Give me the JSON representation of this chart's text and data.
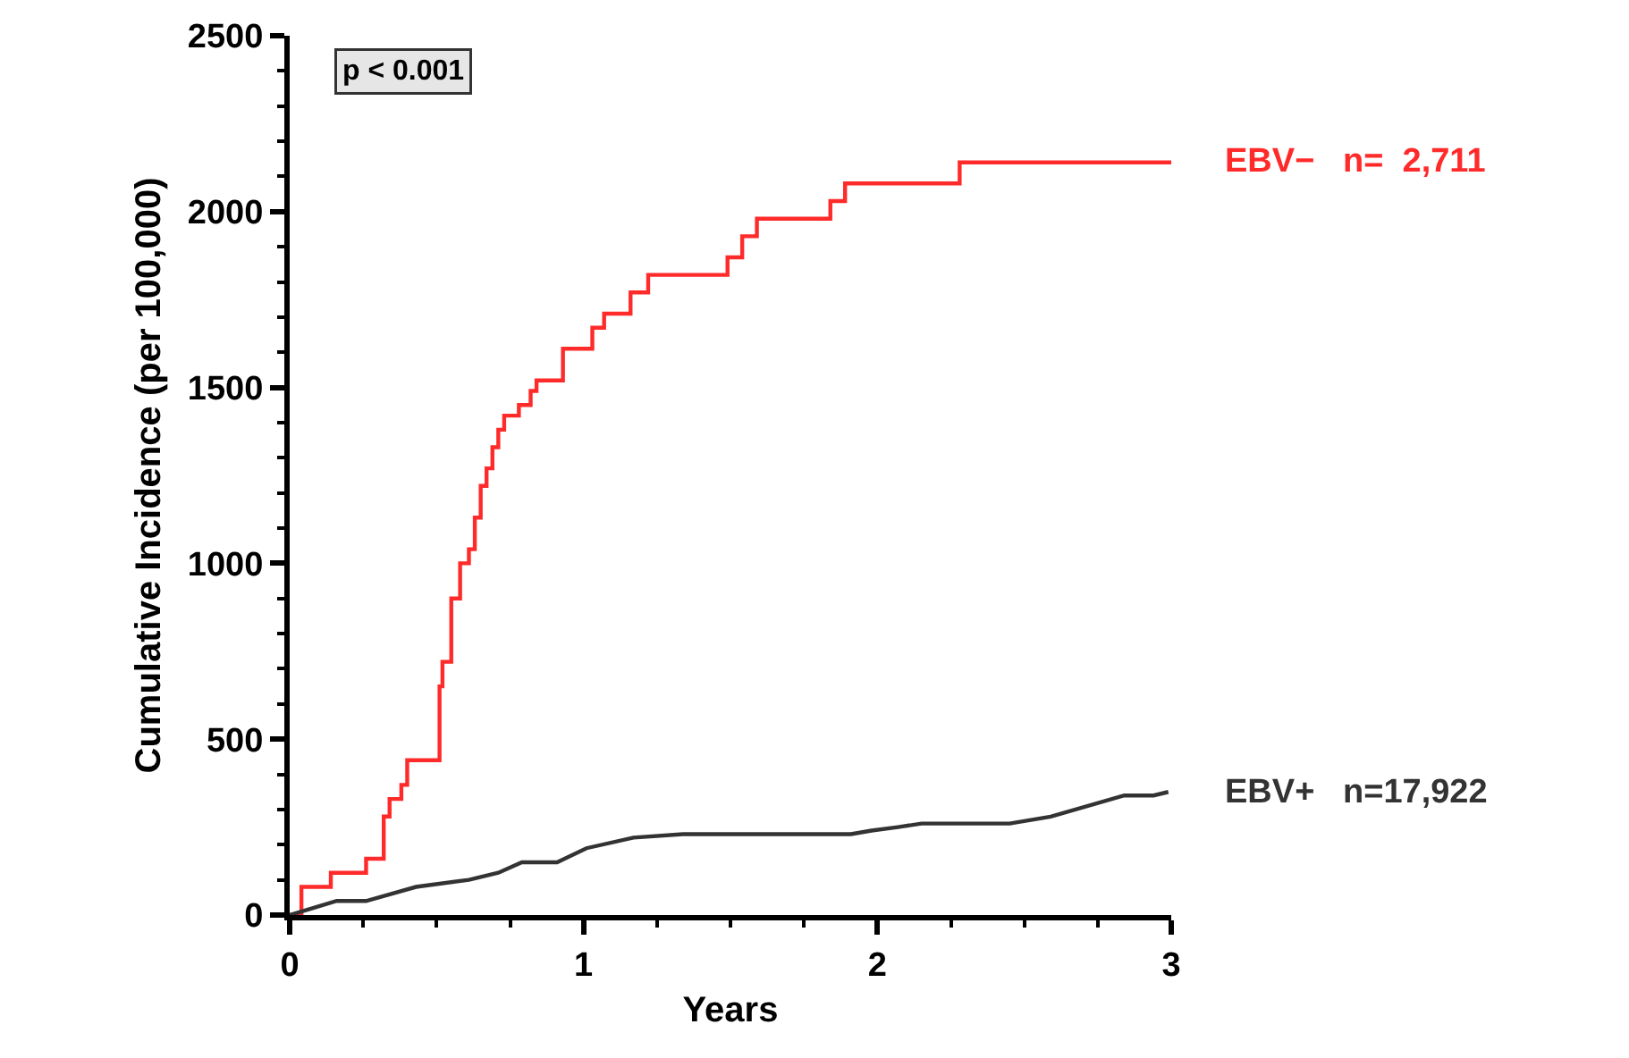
{
  "chart_data": {
    "type": "step",
    "xlabel": "Years",
    "ylabel": "Cumulative Incidence (per 100,000)",
    "xlim": [
      0,
      3
    ],
    "xticks": [
      0,
      1,
      2,
      3
    ],
    "ylim": [
      0,
      2500
    ],
    "yticks": [
      0,
      500,
      1000,
      1500,
      2000,
      2500
    ],
    "legend": false,
    "marker": "none",
    "line_style": "solid",
    "annotations": [
      "p < 0.001"
    ],
    "series": [
      {
        "name": "EBV−   n=  2,711",
        "color": "#ff2a2a",
        "x": [
          0,
          0.04,
          0.14,
          0.26,
          0.32,
          0.34,
          0.38,
          0.4,
          0.51,
          0.52,
          0.55,
          0.58,
          0.61,
          0.63,
          0.65,
          0.67,
          0.69,
          0.71,
          0.73,
          0.78,
          0.82,
          0.84,
          0.93,
          1.03,
          1.07,
          1.16,
          1.22,
          1.49,
          1.54,
          1.59,
          1.84,
          1.89,
          2.28,
          3.0
        ],
        "values": [
          0,
          80,
          120,
          160,
          280,
          330,
          370,
          440,
          650,
          720,
          900,
          1000,
          1040,
          1130,
          1220,
          1270,
          1330,
          1380,
          1420,
          1450,
          1490,
          1520,
          1610,
          1670,
          1710,
          1770,
          1820,
          1870,
          1930,
          1980,
          2030,
          2080,
          2140,
          2140
        ]
      },
      {
        "name": "EBV+   n=17,922",
        "type": "line",
        "color": "#333333",
        "x": [
          0,
          0.16,
          0.26,
          0.43,
          0.61,
          0.71,
          0.79,
          0.91,
          1.01,
          1.17,
          1.34,
          1.91,
          1.98,
          2.07,
          2.15,
          2.45,
          2.59,
          2.84,
          2.94,
          2.99
        ],
        "values": [
          0,
          40,
          40,
          80,
          100,
          120,
          150,
          150,
          190,
          220,
          230,
          230,
          240,
          250,
          260,
          260,
          280,
          340,
          340,
          350
        ]
      }
    ]
  }
}
